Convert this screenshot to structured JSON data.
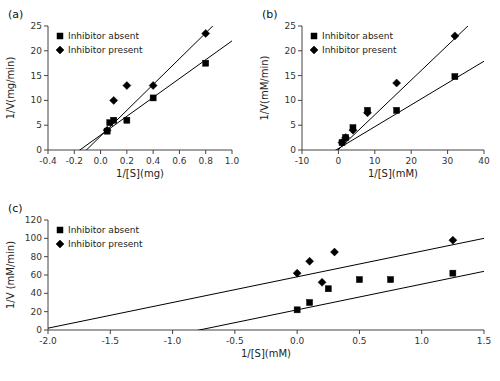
{
  "chart_data": [
    {
      "type": "scatter",
      "title": "(a)",
      "x_label": "1/[S](mg)",
      "y_label": "1/V(mg/min)",
      "xlim": [
        -0.4,
        1.0
      ],
      "ylim": [
        0,
        25
      ],
      "xticks": [
        -0.4,
        -0.2,
        {
          "value": 0,
          "label": "0.0"
        },
        0.2,
        0.4,
        0.6,
        0.8,
        {
          "value": 1,
          "label": "1.0"
        }
      ],
      "yticks": [
        0,
        5,
        10,
        15,
        20,
        25
      ],
      "grid": false,
      "legend": "upper left",
      "series": [
        {
          "name": "Inhibitor absent",
          "color": "black",
          "marker": "square",
          "x": [
            0.05,
            0.07,
            0.1,
            0.2,
            0.4,
            0.8
          ],
          "values": [
            3.8,
            5.5,
            6.0,
            6.0,
            10.5,
            17.5
          ],
          "fit_slope": 19.0,
          "fit_intercept": 3.0
        },
        {
          "name": "Inhibitor present",
          "color": "black",
          "marker": "diamond",
          "x": [
            0.05,
            0.1,
            0.2,
            0.4,
            0.8
          ],
          "values": [
            4.0,
            10.0,
            13.0,
            13.0,
            23.5
          ],
          "fit_slope": 26.0,
          "fit_intercept": 2.8
        }
      ]
    },
    {
      "type": "scatter",
      "title": "(b)",
      "x_label": "1/[S](mM)",
      "y_label": "1/V(mM/min)",
      "xlim": [
        -10,
        40
      ],
      "ylim": [
        0,
        25
      ],
      "xticks": [
        -10,
        0,
        10,
        20,
        30,
        40
      ],
      "yticks": [
        0,
        5,
        10,
        15,
        20,
        25
      ],
      "grid": false,
      "legend": "upper left",
      "series": [
        {
          "name": "Inhibitor absent",
          "color": "black",
          "marker": "square",
          "x": [
            1.0,
            2.0,
            4.0,
            8.0,
            16.0,
            32.0
          ],
          "values": [
            1.5,
            2.5,
            4.5,
            8.0,
            8.0,
            14.8
          ],
          "fit_slope": 0.44,
          "fit_intercept": 0.3
        },
        {
          "name": "Inhibitor present",
          "color": "black",
          "marker": "diamond",
          "x": [
            1.0,
            2.0,
            4.0,
            8.0,
            16.0,
            32.0
          ],
          "values": [
            1.5,
            2.5,
            4.0,
            7.5,
            13.5,
            23.0
          ],
          "fit_slope": 0.7,
          "fit_intercept": 0.1
        }
      ]
    },
    {
      "type": "scatter",
      "title": "(c)",
      "x_label": "1/[S](mM)",
      "y_label": "1/V (mM/min)",
      "xlim": [
        -2.0,
        1.5
      ],
      "ylim": [
        0,
        120
      ],
      "xticks": [
        {
          "value": -2,
          "label": "-2.0"
        },
        -1.5,
        {
          "value": -1,
          "label": "-1.0"
        },
        -0.5,
        {
          "value": 0,
          "label": "0.0"
        },
        0.5,
        {
          "value": 1,
          "label": "1.0"
        },
        1.5
      ],
      "yticks": [
        0,
        20,
        40,
        60,
        80,
        100,
        120
      ],
      "grid": false,
      "legend": "upper left",
      "series": [
        {
          "name": "Inhibitor absent",
          "color": "black",
          "marker": "square",
          "x": [
            0.0,
            0.1,
            0.25,
            0.5,
            0.75,
            1.25
          ],
          "values": [
            22.0,
            30.0,
            45.0,
            55.0,
            55.0,
            62.0
          ],
          "fit_slope": 28.0,
          "fit_intercept": 22.0
        },
        {
          "name": "Inhibitor present",
          "color": "black",
          "marker": "diamond",
          "x": [
            0.0,
            0.1,
            0.2,
            0.3,
            1.25
          ],
          "values": [
            62.0,
            75.0,
            52.0,
            85.0,
            98.0
          ],
          "fit_slope": 28.0,
          "fit_intercept": 58.0
        }
      ]
    }
  ]
}
